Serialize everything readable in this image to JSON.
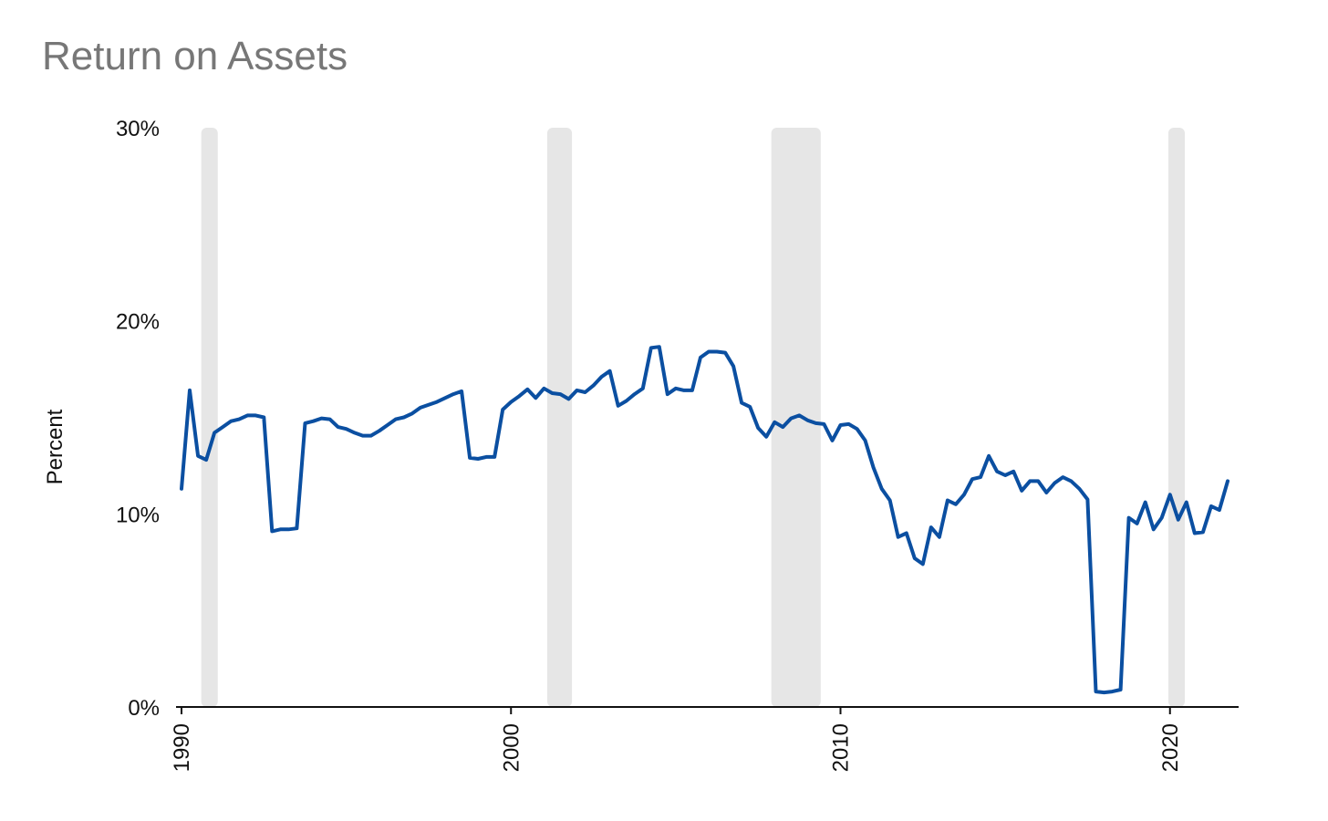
{
  "chart_data": {
    "type": "line",
    "title": "Return on Assets",
    "ylabel": "Percent",
    "xlim": [
      1990,
      2022
    ],
    "ylim": [
      0,
      30
    ],
    "yticks": [
      {
        "value": 0,
        "label": "0%"
      },
      {
        "value": 10,
        "label": "10%"
      },
      {
        "value": 20,
        "label": "20%"
      },
      {
        "value": 30,
        "label": "30%"
      }
    ],
    "xticks": [
      {
        "value": 1990,
        "label": "1990"
      },
      {
        "value": 2000,
        "label": "2000"
      },
      {
        "value": 2010,
        "label": "2010"
      },
      {
        "value": 2020,
        "label": "2020"
      }
    ],
    "grid": false,
    "legend": "none",
    "line_color": "#0b4fa1",
    "shade_color": "#e6e6e6",
    "recessions": [
      {
        "start": 1990.6,
        "end": 1991.1
      },
      {
        "start": 2001.1,
        "end": 2001.85
      },
      {
        "start": 2007.9,
        "end": 2009.4
      },
      {
        "start": 2019.95,
        "end": 2020.45
      }
    ],
    "series": [
      {
        "points": [
          [
            1990.0,
            11.3
          ],
          [
            1990.25,
            16.4
          ],
          [
            1990.5,
            13.0
          ],
          [
            1990.75,
            12.8
          ],
          [
            1991.0,
            14.2
          ],
          [
            1991.25,
            14.5
          ],
          [
            1991.5,
            14.8
          ],
          [
            1991.75,
            14.9
          ],
          [
            1992.0,
            15.1
          ],
          [
            1992.25,
            15.1
          ],
          [
            1992.5,
            15.0
          ],
          [
            1992.75,
            9.1
          ],
          [
            1993.0,
            9.2
          ],
          [
            1993.25,
            9.2
          ],
          [
            1993.5,
            9.25
          ],
          [
            1993.75,
            14.7
          ],
          [
            1994.0,
            14.8
          ],
          [
            1994.25,
            14.95
          ],
          [
            1994.5,
            14.9
          ],
          [
            1994.75,
            14.5
          ],
          [
            1995.0,
            14.4
          ],
          [
            1995.25,
            14.2
          ],
          [
            1995.5,
            14.05
          ],
          [
            1995.75,
            14.05
          ],
          [
            1996.0,
            14.3
          ],
          [
            1996.25,
            14.6
          ],
          [
            1996.5,
            14.9
          ],
          [
            1996.75,
            15.0
          ],
          [
            1997.0,
            15.2
          ],
          [
            1997.25,
            15.5
          ],
          [
            1997.5,
            15.65
          ],
          [
            1997.75,
            15.8
          ],
          [
            1998.0,
            16.0
          ],
          [
            1998.25,
            16.2
          ],
          [
            1998.5,
            16.35
          ],
          [
            1998.75,
            12.9
          ],
          [
            1999.0,
            12.85
          ],
          [
            1999.25,
            12.95
          ],
          [
            1999.5,
            12.95
          ],
          [
            1999.75,
            15.4
          ],
          [
            2000.0,
            15.8
          ],
          [
            2000.25,
            16.1
          ],
          [
            2000.5,
            16.45
          ],
          [
            2000.75,
            16.0
          ],
          [
            2001.0,
            16.5
          ],
          [
            2001.25,
            16.25
          ],
          [
            2001.5,
            16.2
          ],
          [
            2001.75,
            15.95
          ],
          [
            2002.0,
            16.4
          ],
          [
            2002.25,
            16.3
          ],
          [
            2002.5,
            16.65
          ],
          [
            2002.75,
            17.1
          ],
          [
            2003.0,
            17.4
          ],
          [
            2003.25,
            15.6
          ],
          [
            2003.5,
            15.85
          ],
          [
            2003.75,
            16.2
          ],
          [
            2004.0,
            16.5
          ],
          [
            2004.25,
            18.6
          ],
          [
            2004.5,
            18.65
          ],
          [
            2004.75,
            16.2
          ],
          [
            2005.0,
            16.5
          ],
          [
            2005.25,
            16.4
          ],
          [
            2005.5,
            16.4
          ],
          [
            2005.75,
            18.1
          ],
          [
            2006.0,
            18.4
          ],
          [
            2006.25,
            18.4
          ],
          [
            2006.5,
            18.35
          ],
          [
            2006.75,
            17.65
          ],
          [
            2007.0,
            15.75
          ],
          [
            2007.25,
            15.55
          ],
          [
            2007.5,
            14.45
          ],
          [
            2007.75,
            14.0
          ],
          [
            2008.0,
            14.75
          ],
          [
            2008.25,
            14.5
          ],
          [
            2008.5,
            14.95
          ],
          [
            2008.75,
            15.1
          ],
          [
            2009.0,
            14.85
          ],
          [
            2009.25,
            14.7
          ],
          [
            2009.5,
            14.65
          ],
          [
            2009.75,
            13.8
          ],
          [
            2010.0,
            14.6
          ],
          [
            2010.25,
            14.65
          ],
          [
            2010.5,
            14.4
          ],
          [
            2010.75,
            13.8
          ],
          [
            2011.0,
            12.4
          ],
          [
            2011.25,
            11.3
          ],
          [
            2011.5,
            10.7
          ],
          [
            2011.75,
            8.8
          ],
          [
            2012.0,
            9.0
          ],
          [
            2012.25,
            7.7
          ],
          [
            2012.5,
            7.4
          ],
          [
            2012.75,
            9.3
          ],
          [
            2013.0,
            8.8
          ],
          [
            2013.25,
            10.7
          ],
          [
            2013.5,
            10.5
          ],
          [
            2013.75,
            11.0
          ],
          [
            2014.0,
            11.8
          ],
          [
            2014.25,
            11.9
          ],
          [
            2014.5,
            13.0
          ],
          [
            2014.75,
            12.2
          ],
          [
            2015.0,
            12.0
          ],
          [
            2015.25,
            12.2
          ],
          [
            2015.5,
            11.2
          ],
          [
            2015.75,
            11.7
          ],
          [
            2016.0,
            11.7
          ],
          [
            2016.25,
            11.1
          ],
          [
            2016.5,
            11.6
          ],
          [
            2016.75,
            11.9
          ],
          [
            2017.0,
            11.7
          ],
          [
            2017.25,
            11.3
          ],
          [
            2017.5,
            10.75
          ],
          [
            2017.75,
            0.8
          ],
          [
            2018.0,
            0.75
          ],
          [
            2018.25,
            0.8
          ],
          [
            2018.5,
            0.9
          ],
          [
            2018.75,
            9.8
          ],
          [
            2019.0,
            9.5
          ],
          [
            2019.25,
            10.6
          ],
          [
            2019.5,
            9.2
          ],
          [
            2019.75,
            9.8
          ],
          [
            2020.0,
            11.0
          ],
          [
            2020.25,
            9.7
          ],
          [
            2020.5,
            10.6
          ],
          [
            2020.75,
            9.0
          ],
          [
            2021.0,
            9.05
          ],
          [
            2021.25,
            10.4
          ],
          [
            2021.5,
            10.2
          ],
          [
            2021.75,
            11.7
          ]
        ]
      }
    ]
  }
}
